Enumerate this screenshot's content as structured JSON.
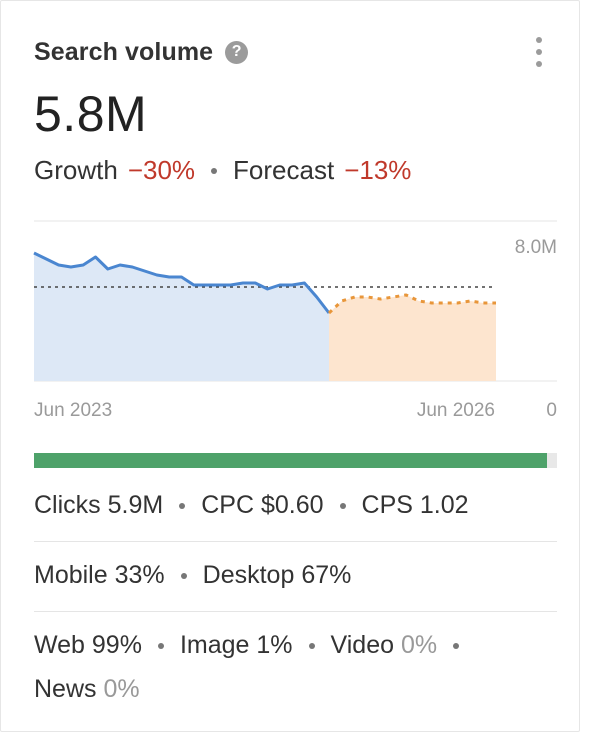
{
  "card": {
    "title": "Search volume",
    "help_icon": "question-mark-icon",
    "help_glyph": "?",
    "menu_icon": "kebab-menu-icon",
    "value": "5.8M",
    "growth_label": "Growth",
    "growth_value": "−30%",
    "forecast_label": "Forecast",
    "forecast_value": "−13%",
    "colors": {
      "negative": "#c0392b",
      "history_line": "#4a86d0",
      "history_fill": "#dde8f6",
      "forecast_line": "#e8963a",
      "forecast_fill": "#fde5cf",
      "progress": "#4ea26a"
    }
  },
  "chart_data": {
    "type": "area",
    "x_start_label": "Jun 2023",
    "x_end_label": "Jun 2026",
    "y_max_label": "8.0M",
    "y_min_label": "0",
    "ylim": [
      0,
      8.0
    ],
    "average_line": 4.7,
    "history": [
      6.4,
      6.1,
      5.8,
      5.7,
      5.8,
      6.2,
      5.6,
      5.8,
      5.7,
      5.5,
      5.3,
      5.2,
      5.2,
      4.8,
      4.8,
      4.8,
      4.8,
      4.9,
      4.9,
      4.6,
      4.8,
      4.8,
      4.9,
      4.2,
      3.4
    ],
    "forecast": [
      3.4,
      4.0,
      4.2,
      4.2,
      4.1,
      4.2,
      4.3,
      4.0,
      3.9,
      3.9,
      3.9,
      4.0,
      3.9,
      3.9
    ]
  },
  "device_split": {
    "progress_fraction": 0.98
  },
  "stats": {
    "clicks_label": "Clicks",
    "clicks_value": "5.9M",
    "cpc_label": "CPC",
    "cpc_value": "$0.60",
    "cps_label": "CPS",
    "cps_value": "1.02",
    "mobile_label": "Mobile",
    "mobile_value": "33%",
    "desktop_label": "Desktop",
    "desktop_value": "67%",
    "web_label": "Web",
    "web_value": "99%",
    "image_label": "Image",
    "image_value": "1%",
    "video_label": "Video",
    "video_value": "0%",
    "news_label": "News",
    "news_value": "0%"
  }
}
